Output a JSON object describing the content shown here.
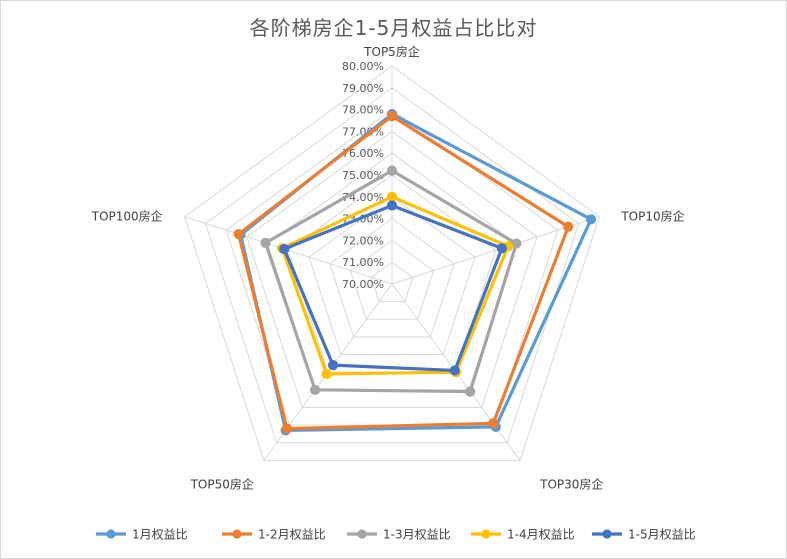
{
  "chart_data": {
    "type": "radar",
    "title": "各阶梯房企1-5月权益占比比对",
    "categories": [
      "TOP5房企",
      "TOP10房企",
      "TOP30房企",
      "TOP50房企",
      "TOP100房企"
    ],
    "r_min": 70,
    "r_max": 80,
    "r_step": 1,
    "tick_labels": [
      "70.00%",
      "71.00%",
      "72.00%",
      "73.00%",
      "74.00%",
      "75.00%",
      "76.00%",
      "77.00%",
      "78.00%",
      "79.00%",
      "80.00%"
    ],
    "grid": true,
    "legend_position": "bottom",
    "series": [
      {
        "name": "1月权益比",
        "color": "#5b9bd5",
        "values": [
          77.8,
          79.6,
          78.1,
          78.3,
          77.3
        ]
      },
      {
        "name": "1-2月权益比",
        "color": "#ed7d31",
        "values": [
          77.7,
          78.5,
          77.9,
          78.2,
          77.4
        ]
      },
      {
        "name": "1-3月权益比",
        "color": "#a5a5a5",
        "values": [
          75.2,
          76.0,
          76.1,
          76.0,
          76.1
        ]
      },
      {
        "name": "1-4月权益比",
        "color": "#ffc000",
        "values": [
          74.0,
          75.6,
          75.0,
          75.1,
          75.3
        ]
      },
      {
        "name": "1-5月权益比",
        "color": "#4472c4",
        "values": [
          73.6,
          75.3,
          74.9,
          74.6,
          75.2
        ]
      }
    ]
  }
}
